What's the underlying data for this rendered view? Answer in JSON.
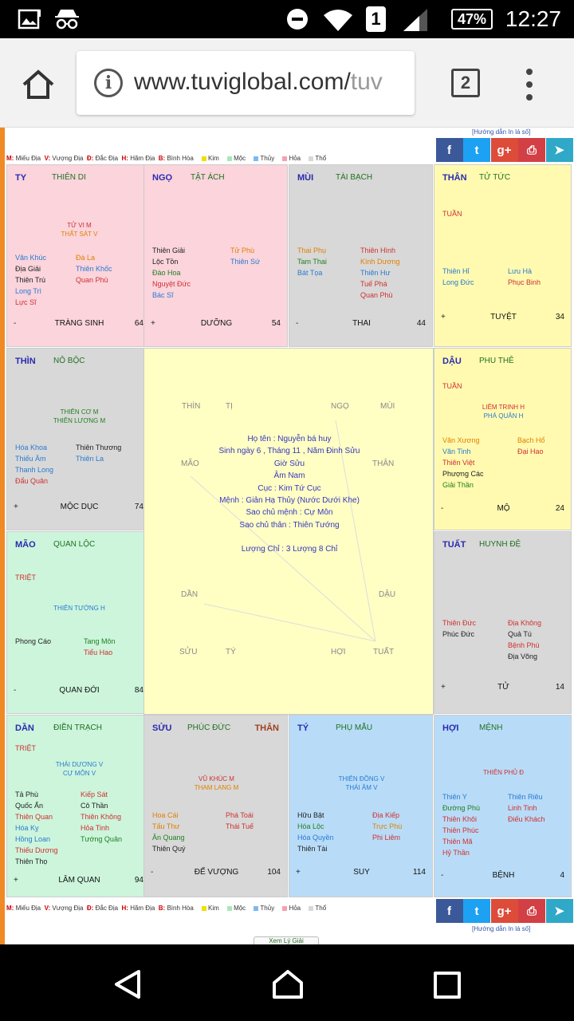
{
  "status_bar": {
    "battery": "47%",
    "sim_slot": "1",
    "time": "12:27"
  },
  "browser": {
    "url_host": "www.tuviglobal.com/",
    "url_path": "tuv",
    "tab_count": "2"
  },
  "page": {
    "guide_text": "[Hướng dẫn In lá số]",
    "legend": {
      "m": "M:",
      "m_label": "Miếu Địa",
      "v": "V:",
      "v_label": "Vượng Địa",
      "d": "Đ:",
      "d_label": "Đắc Địa",
      "h": "H:",
      "h_label": "Hãm Địa",
      "b": "B:",
      "b_label": "Bình Hòa",
      "kim": "Kim",
      "moc": "Mộc",
      "thuy": "Thủy",
      "hoa": "Hỏa",
      "tho": "Thổ",
      "colors": {
        "kim": "#f2e000",
        "moc": "#a8e8b8",
        "thuy": "#7fb8f0",
        "hoa": "#f5a0b0",
        "tho": "#d8d8d8"
      }
    },
    "share_buttons": {
      "facebook": "f",
      "twitter": "t",
      "google": "g+",
      "print": "⎙",
      "telegram": "➤"
    },
    "view_button": "Xem Lý Giải",
    "center": {
      "zodiac": {
        "thin": "THÌN",
        "ti": "TỊ",
        "ngo": "NGỌ",
        "mui": "MÙI",
        "mao": "MÃO",
        "than": "THÂN",
        "dan": "DẦN",
        "dau": "DẬU",
        "suu": "SỬU",
        "ty": "TÝ",
        "hoi": "HỢI",
        "tuat": "TUẤT"
      },
      "lines": [
        "Họ tên : Nguyễn bá huy",
        "Sinh ngày 6 , Tháng 11 , Năm Đinh Sửu",
        "Giờ Sửu",
        "Âm Nam",
        "Cục : Kim Tứ Cục",
        "Mệnh : Giản Hạ Thủy (Nước Dưới Khe)",
        "Sao chủ mệnh : Cự Môn",
        "Sao chủ thân : Thiên Tướng"
      ],
      "luong_chi": "Lượng Chỉ : 3 Lượng 8 Chỉ"
    },
    "cells": {
      "ty": {
        "pos": "TY",
        "name": "THIÊN DI",
        "main": [
          "TỬ VI M",
          "THẤT SÁT V"
        ],
        "left": [
          "Văn Khúc",
          "Địa Giải",
          "Thiên Trù",
          "Long Trì",
          "Lực Sĩ"
        ],
        "right": [
          "Đà La",
          "Thiên Khốc",
          "Quan Phù"
        ],
        "sign": "-",
        "stage": "TRÀNG SINH",
        "age": "64"
      },
      "ngo": {
        "pos": "NGỌ",
        "name": "TẬT ÁCH",
        "left": [
          "Thiên Giải",
          "Lộc Tồn",
          "Đào Hoa",
          "Nguyệt Đức",
          "Bác Sĩ"
        ],
        "right": [
          "Tử Phù",
          "Thiên Sứ"
        ],
        "sign": "+",
        "stage": "DƯỠNG",
        "age": "54"
      },
      "mui": {
        "pos": "MÙI",
        "name": "TÀI BẠCH",
        "left": [
          "Thai Phụ",
          "Tam Thai",
          "Bát Tọa"
        ],
        "right": [
          "Thiên Hình",
          "Kình Dương",
          "Thiên Hư",
          "Tuế Phá",
          "Quan Phù"
        ],
        "sign": "-",
        "stage": "THAI",
        "age": "44"
      },
      "than": {
        "pos": "THÂN",
        "name": "TỬ TỨC",
        "tag": "TUẦN",
        "left": [
          "Thiên Hỉ",
          "Long Đức"
        ],
        "right": [
          "Lưu Hà",
          "Phục Binh"
        ],
        "sign": "+",
        "stage": "TUYỆT",
        "age": "34"
      },
      "thin": {
        "pos": "THÌN",
        "name": "NÔ BỘC",
        "main": [
          "THIÊN CƠ M",
          "THIÊN LƯƠNG M"
        ],
        "left": [
          "Hóa Khoa",
          "Thiếu Âm",
          "Thanh Long",
          "Đẩu Quân"
        ],
        "right": [
          "Thiên Thương",
          "Thiên La"
        ],
        "sign": "+",
        "stage": "MỘC DỤC",
        "age": "74"
      },
      "dau": {
        "pos": "DẬU",
        "name": "PHU THÊ",
        "tag": "TUẦN",
        "main": [
          "LIÊM TRINH H",
          "PHÁ QUÂN H"
        ],
        "left": [
          "Văn Xương",
          "Văn Tinh",
          "Thiên Việt",
          "Phượng Các",
          "Giải Thần"
        ],
        "right": [
          "Bạch Hổ",
          "Đại Hao"
        ],
        "sign": "-",
        "stage": "MỘ",
        "age": "24"
      },
      "mao": {
        "pos": "MÃO",
        "name": "QUAN LỘC",
        "tag": "TRIỆT",
        "main": [
          "THIÊN TƯỚNG H"
        ],
        "left": [
          "Phong Cáo"
        ],
        "right": [
          "Tang Môn",
          "Tiểu Hao"
        ],
        "sign": "-",
        "stage": "QUAN ĐỚI",
        "age": "84"
      },
      "tuat": {
        "pos": "TUẤT",
        "name": "HUYNH ĐỆ",
        "left": [
          "Thiên Đức",
          "Phúc Đức"
        ],
        "right": [
          "Địa Không",
          "Quả Tú",
          "Bệnh Phù",
          "Địa Võng"
        ],
        "sign": "+",
        "stage": "TỬ",
        "age": "14"
      },
      "dan": {
        "pos": "DẦN",
        "name": "ĐIỀN TRẠCH",
        "tag": "TRIỆT",
        "main": [
          "THÁI DƯƠNG V",
          "CỰ MÔN V"
        ],
        "left": [
          "Tả Phù",
          "Quốc Ấn",
          "Thiên Quan",
          "Hóa Kỵ",
          "Hồng Loan",
          "Thiếu Dương",
          "Thiên Thọ"
        ],
        "right": [
          "Kiếp Sát",
          "Cô Thần",
          "Thiên Không",
          "Hỏa Tinh",
          "Tướng Quân"
        ],
        "sign": "+",
        "stage": "LÂM QUAN",
        "age": "94"
      },
      "suu": {
        "pos": "SỬU",
        "name": "PHÚC ĐỨC",
        "tag2": "THÂN",
        "main": [
          "VŨ KHÚC M",
          "THAM LANG M"
        ],
        "left": [
          "Hoa Cái",
          "Tấu Thư",
          "Ân Quang",
          "Thiên Quý"
        ],
        "right": [
          "Phá Toái",
          "Thái Tuế"
        ],
        "sign": "-",
        "stage": "ĐẾ VƯỢNG",
        "age": "104"
      },
      "tyy": {
        "pos": "TÝ",
        "name": "PHỤ MẪU",
        "main": [
          "THIÊN ĐỒNG V",
          "THÁI ÂM V"
        ],
        "left": [
          "Hữu Bật",
          "Hóa Lộc",
          "Hóa Quyền",
          "Thiên Tài"
        ],
        "right": [
          "Địa Kiếp",
          "Trực Phù",
          "Phi Liêm"
        ],
        "sign": "+",
        "stage": "SUY",
        "age": "114"
      },
      "hoi": {
        "pos": "HỢI",
        "name": "MỆNH",
        "main": [
          "THIÊN PHỦ Đ"
        ],
        "left": [
          "Thiên Y",
          "Đường Phù",
          "Thiên Khôi",
          "Thiên Phúc",
          "Thiên Mã",
          "Hỷ Thần"
        ],
        "right": [
          "Thiên Riêu",
          "Linh Tinh",
          "Điếu Khách"
        ],
        "sign": "-",
        "stage": "BỆNH",
        "age": "4"
      }
    }
  }
}
